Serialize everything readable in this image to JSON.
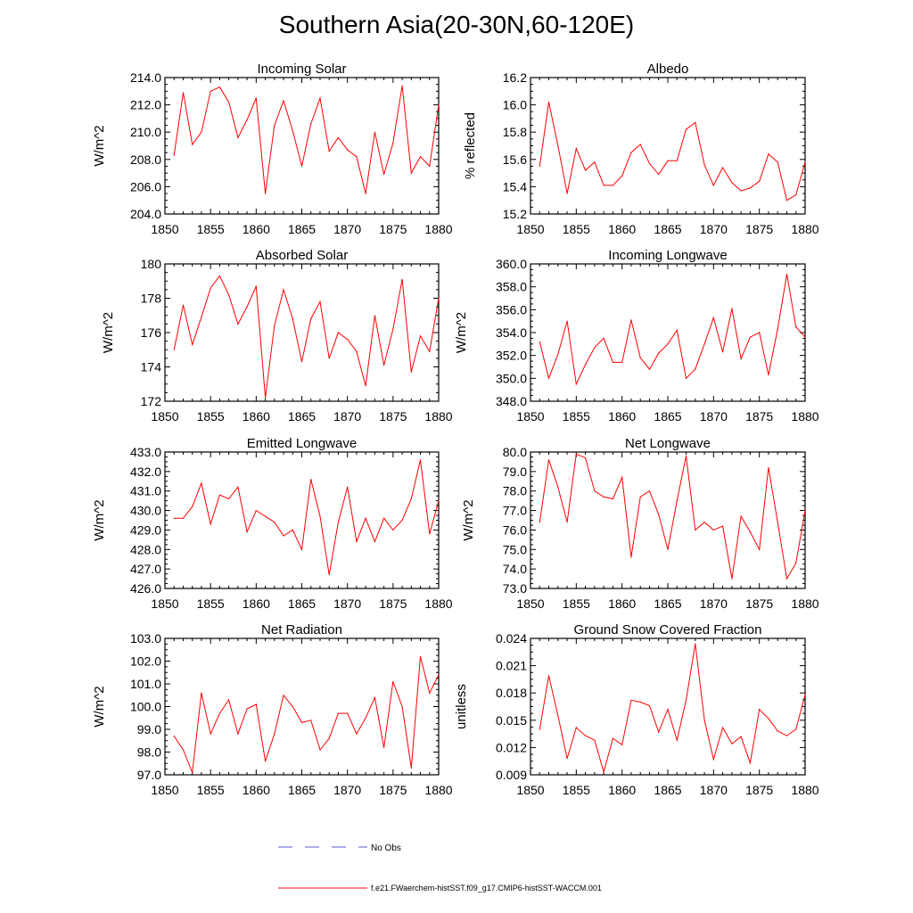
{
  "page": {
    "title": "Southern Asia(20-30N,60-120E)"
  },
  "colors": {
    "series": "#ff0000",
    "no_obs": "#5b5bd6",
    "axis": "#000000"
  },
  "legend": {
    "no_obs_label": "No Obs",
    "model_label": "f.e21.FWaerchem-histSST.f09_g17.CMIP6-histSST-WACCM.001"
  },
  "chart_data": [
    {
      "type": "line",
      "title": "Incoming Solar",
      "ylabel": "W/m^2",
      "x": [
        1851,
        1852,
        1853,
        1854,
        1855,
        1856,
        1857,
        1858,
        1859,
        1860,
        1861,
        1862,
        1863,
        1864,
        1865,
        1866,
        1867,
        1868,
        1869,
        1870,
        1871,
        1872,
        1873,
        1874,
        1875,
        1876,
        1877,
        1878,
        1879,
        1880
      ],
      "values": [
        208.3,
        212.9,
        209.1,
        210.0,
        213.0,
        213.3,
        212.2,
        209.6,
        210.9,
        212.5,
        205.5,
        210.5,
        212.3,
        210.1,
        207.5,
        210.6,
        212.5,
        208.6,
        209.6,
        208.7,
        208.2,
        205.5,
        210.0,
        206.9,
        209.2,
        213.4,
        207.0,
        208.2,
        207.5,
        212.0
      ],
      "xlim": [
        1850,
        1880
      ],
      "ylim": [
        204.0,
        214.0
      ],
      "yticks": [
        "204.0",
        "206.0",
        "208.0",
        "210.0",
        "212.0",
        "214.0"
      ],
      "xticks": [
        "1850",
        "1855",
        "1860",
        "1865",
        "1870",
        "1875",
        "1880"
      ]
    },
    {
      "type": "line",
      "title": "Albedo",
      "ylabel": "% reflected",
      "x": [
        1851,
        1852,
        1853,
        1854,
        1855,
        1856,
        1857,
        1858,
        1859,
        1860,
        1861,
        1862,
        1863,
        1864,
        1865,
        1866,
        1867,
        1868,
        1869,
        1870,
        1871,
        1872,
        1873,
        1874,
        1875,
        1876,
        1877,
        1878,
        1879,
        1880
      ],
      "values": [
        15.55,
        16.02,
        15.7,
        15.35,
        15.68,
        15.52,
        15.58,
        15.41,
        15.41,
        15.48,
        15.65,
        15.71,
        15.57,
        15.49,
        15.59,
        15.59,
        15.82,
        15.87,
        15.56,
        15.41,
        15.54,
        15.43,
        15.37,
        15.39,
        15.44,
        15.64,
        15.58,
        15.3,
        15.34,
        15.58
      ],
      "xlim": [
        1850,
        1880
      ],
      "ylim": [
        15.2,
        16.2
      ],
      "yticks": [
        "15.2",
        "15.4",
        "15.6",
        "15.8",
        "16.0",
        "16.2"
      ],
      "xticks": [
        "1850",
        "1855",
        "1860",
        "1865",
        "1870",
        "1875",
        "1880"
      ]
    },
    {
      "type": "line",
      "title": "Absorbed Solar",
      "ylabel": "W/m^2",
      "x": [
        1851,
        1852,
        1853,
        1854,
        1855,
        1856,
        1857,
        1858,
        1859,
        1860,
        1861,
        1862,
        1863,
        1864,
        1865,
        1866,
        1867,
        1868,
        1869,
        1870,
        1871,
        1872,
        1873,
        1874,
        1875,
        1876,
        1877,
        1878,
        1879,
        1880
      ],
      "values": [
        175.0,
        177.6,
        175.3,
        176.9,
        178.6,
        179.3,
        178.2,
        176.5,
        177.5,
        178.7,
        172.2,
        176.4,
        178.5,
        176.8,
        174.3,
        176.8,
        177.8,
        174.5,
        176.0,
        175.6,
        174.9,
        172.9,
        177.0,
        174.1,
        176.2,
        179.1,
        173.7,
        175.8,
        174.9,
        178.0
      ],
      "xlim": [
        1850,
        1880
      ],
      "ylim": [
        172,
        180
      ],
      "yticks": [
        "172",
        "174",
        "176",
        "178",
        "180"
      ],
      "xticks": [
        "1850",
        "1855",
        "1860",
        "1865",
        "1870",
        "1875",
        "1880"
      ]
    },
    {
      "type": "line",
      "title": "Incoming Longwave",
      "ylabel": "W/m^2",
      "x": [
        1851,
        1852,
        1853,
        1854,
        1855,
        1856,
        1857,
        1858,
        1859,
        1860,
        1861,
        1862,
        1863,
        1864,
        1865,
        1866,
        1867,
        1868,
        1869,
        1870,
        1871,
        1872,
        1873,
        1874,
        1875,
        1876,
        1877,
        1878,
        1879,
        1880
      ],
      "values": [
        353.2,
        350.0,
        352.1,
        355.0,
        349.5,
        351.2,
        352.7,
        353.5,
        351.4,
        351.4,
        355.1,
        351.8,
        350.8,
        352.2,
        353.0,
        354.2,
        350.0,
        350.8,
        353.0,
        355.3,
        352.3,
        356.1,
        351.7,
        353.6,
        354.0,
        350.3,
        354.3,
        359.1,
        354.5,
        353.6
      ],
      "xlim": [
        1850,
        1880
      ],
      "ylim": [
        348.0,
        360.0
      ],
      "yticks": [
        "348.0",
        "350.0",
        "352.0",
        "354.0",
        "356.0",
        "358.0",
        "360.0"
      ],
      "xticks": [
        "1850",
        "1855",
        "1860",
        "1865",
        "1870",
        "1875",
        "1880"
      ]
    },
    {
      "type": "line",
      "title": "Emitted Longwave",
      "ylabel": "W/m^2",
      "x": [
        1851,
        1852,
        1853,
        1854,
        1855,
        1856,
        1857,
        1858,
        1859,
        1860,
        1861,
        1862,
        1863,
        1864,
        1865,
        1866,
        1867,
        1868,
        1869,
        1870,
        1871,
        1872,
        1873,
        1874,
        1875,
        1876,
        1877,
        1878,
        1879,
        1880
      ],
      "values": [
        429.6,
        429.6,
        430.2,
        431.4,
        429.3,
        430.8,
        430.6,
        431.2,
        428.9,
        430.0,
        429.7,
        429.4,
        428.7,
        429.0,
        428.0,
        431.6,
        429.7,
        426.7,
        429.4,
        431.2,
        428.4,
        429.6,
        428.4,
        429.6,
        429.0,
        429.5,
        430.6,
        432.6,
        428.8,
        430.5
      ],
      "xlim": [
        1850,
        1880
      ],
      "ylim": [
        426.0,
        433.0
      ],
      "yticks": [
        "426.0",
        "427.0",
        "428.0",
        "429.0",
        "430.0",
        "431.0",
        "432.0",
        "433.0"
      ],
      "xticks": [
        "1850",
        "1855",
        "1860",
        "1865",
        "1870",
        "1875",
        "1880"
      ]
    },
    {
      "type": "line",
      "title": "Net Longwave",
      "ylabel": "W/m^2",
      "x": [
        1851,
        1852,
        1853,
        1854,
        1855,
        1856,
        1857,
        1858,
        1859,
        1860,
        1861,
        1862,
        1863,
        1864,
        1865,
        1866,
        1867,
        1868,
        1869,
        1870,
        1871,
        1872,
        1873,
        1874,
        1875,
        1876,
        1877,
        1878,
        1879,
        1880
      ],
      "values": [
        76.4,
        79.6,
        78.2,
        76.4,
        79.9,
        79.7,
        78.0,
        77.7,
        77.6,
        78.7,
        74.6,
        77.7,
        78.0,
        76.8,
        75.0,
        77.5,
        79.8,
        76.0,
        76.4,
        76.0,
        76.2,
        73.5,
        76.7,
        75.9,
        75.0,
        79.2,
        76.4,
        73.5,
        74.3,
        77.0
      ],
      "xlim": [
        1850,
        1880
      ],
      "ylim": [
        73.0,
        80.0
      ],
      "yticks": [
        "73.0",
        "74.0",
        "75.0",
        "76.0",
        "77.0",
        "78.0",
        "79.0",
        "80.0"
      ],
      "xticks": [
        "1850",
        "1855",
        "1860",
        "1865",
        "1870",
        "1875",
        "1880"
      ]
    },
    {
      "type": "line",
      "title": "Net Radiation",
      "ylabel": "W/m^2",
      "x": [
        1851,
        1852,
        1853,
        1854,
        1855,
        1856,
        1857,
        1858,
        1859,
        1860,
        1861,
        1862,
        1863,
        1864,
        1865,
        1866,
        1867,
        1868,
        1869,
        1870,
        1871,
        1872,
        1873,
        1874,
        1875,
        1876,
        1877,
        1878,
        1879,
        1880
      ],
      "values": [
        98.7,
        98.1,
        97.1,
        100.6,
        98.8,
        99.7,
        100.3,
        98.8,
        99.9,
        100.1,
        97.6,
        98.8,
        100.5,
        100.0,
        99.3,
        99.4,
        98.1,
        98.6,
        99.7,
        99.7,
        98.8,
        99.5,
        100.4,
        98.2,
        101.1,
        100.0,
        97.3,
        102.2,
        100.6,
        101.4
      ],
      "xlim": [
        1850,
        1880
      ],
      "ylim": [
        97.0,
        103.0
      ],
      "yticks": [
        "97.0",
        "98.0",
        "99.0",
        "100.0",
        "101.0",
        "102.0",
        "103.0"
      ],
      "xticks": [
        "1850",
        "1855",
        "1860",
        "1865",
        "1870",
        "1875",
        "1880"
      ]
    },
    {
      "type": "line",
      "title": "Ground Snow Covered Fraction",
      "ylabel": "unitless",
      "x": [
        1851,
        1852,
        1853,
        1854,
        1855,
        1856,
        1857,
        1858,
        1859,
        1860,
        1861,
        1862,
        1863,
        1864,
        1865,
        1866,
        1867,
        1868,
        1869,
        1870,
        1871,
        1872,
        1873,
        1874,
        1875,
        1876,
        1877,
        1878,
        1879,
        1880
      ],
      "values": [
        0.014,
        0.0199,
        0.0155,
        0.0108,
        0.0142,
        0.0133,
        0.0128,
        0.0093,
        0.013,
        0.0123,
        0.0172,
        0.017,
        0.0166,
        0.0137,
        0.0162,
        0.0128,
        0.0172,
        0.0234,
        0.015,
        0.0107,
        0.0142,
        0.0124,
        0.0132,
        0.0103,
        0.0162,
        0.0152,
        0.0138,
        0.0133,
        0.014,
        0.0178
      ],
      "xlim": [
        1850,
        1880
      ],
      "ylim": [
        0.009,
        0.024
      ],
      "yticks": [
        "0.009",
        "0.012",
        "0.015",
        "0.018",
        "0.021",
        "0.024"
      ],
      "xticks": [
        "1850",
        "1855",
        "1860",
        "1865",
        "1870",
        "1875",
        "1880"
      ]
    }
  ]
}
